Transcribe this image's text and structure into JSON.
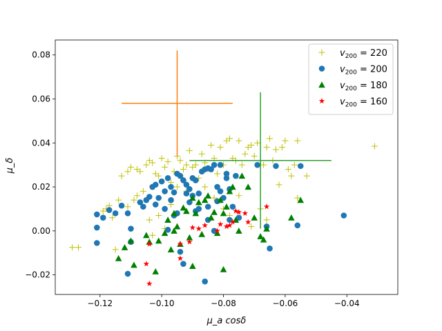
{
  "chart_data": {
    "type": "scatter",
    "xlabel": "μ_a cosδ",
    "ylabel": "μ_δ",
    "xlim": [
      -0.1345,
      -0.0235
    ],
    "ylim": [
      -0.0289,
      0.0868
    ],
    "xticks": [
      -0.12,
      -0.1,
      -0.08,
      -0.06,
      -0.04
    ],
    "xtick_labels": [
      "−0.12",
      "−0.10",
      "−0.08",
      "−0.06",
      "−0.04"
    ],
    "yticks": [
      -0.02,
      0.0,
      0.02,
      0.04,
      0.06,
      0.08
    ],
    "ytick_labels": [
      "−0.02",
      "0.00",
      "0.02",
      "0.04",
      "0.06",
      "0.08"
    ],
    "grid": false,
    "legend_position": "top-right",
    "series": [
      {
        "name": "v200 = 220",
        "legend_base": "v",
        "legend_sub": "200",
        "legend_value": " = 220",
        "marker": "plus",
        "color": "#bfbf00",
        "points": [
          [
            -0.129,
            -0.0075
          ],
          [
            -0.127,
            -0.0075
          ],
          [
            -0.118,
            0.01
          ],
          [
            -0.117,
            0.0115
          ],
          [
            -0.116,
            0.006
          ],
          [
            -0.115,
            -0.0085
          ],
          [
            -0.113,
            0.025
          ],
          [
            -0.111,
            0.027
          ],
          [
            -0.11,
            0.029
          ],
          [
            -0.109,
            0.014
          ],
          [
            -0.108,
            0.028
          ],
          [
            -0.107,
            0.027
          ],
          [
            -0.106,
            0.018
          ],
          [
            -0.105,
            0.03
          ],
          [
            -0.104,
            0.032
          ],
          [
            -0.103,
            0.031
          ],
          [
            -0.102,
            0.026
          ],
          [
            -0.101,
            0.025
          ],
          [
            -0.1,
            0.033
          ],
          [
            -0.099,
            0.029
          ],
          [
            -0.098,
            0.0315
          ],
          [
            -0.097,
            0.022
          ],
          [
            -0.096,
            0.027
          ],
          [
            -0.095,
            0.034
          ],
          [
            -0.094,
            0.032
          ],
          [
            -0.093,
            0.028
          ],
          [
            -0.092,
            0.03
          ],
          [
            -0.091,
            0.0365
          ],
          [
            -0.09,
            0.029
          ],
          [
            -0.089,
            0.03
          ],
          [
            -0.088,
            0.024
          ],
          [
            -0.087,
            0.035
          ],
          [
            -0.086,
            0.031
          ],
          [
            -0.085,
            0.028
          ],
          [
            -0.084,
            0.039
          ],
          [
            -0.083,
            0.033
          ],
          [
            -0.082,
            0.026
          ],
          [
            -0.081,
            0.038
          ],
          [
            -0.08,
            0.03
          ],
          [
            -0.079,
            0.041
          ],
          [
            -0.078,
            0.042
          ],
          [
            -0.077,
            0.033
          ],
          [
            -0.076,
            0.032
          ],
          [
            -0.075,
            0.041
          ],
          [
            -0.074,
            0.03
          ],
          [
            -0.073,
            0.035
          ],
          [
            -0.072,
            0.038
          ],
          [
            -0.071,
            0.039
          ],
          [
            -0.07,
            0.034
          ],
          [
            -0.069,
            0.04
          ],
          [
            -0.068,
            0.032
          ],
          [
            -0.067,
            0.03
          ],
          [
            -0.066,
            0.038
          ],
          [
            -0.065,
            0.042
          ],
          [
            -0.064,
            0.032
          ],
          [
            -0.063,
            0.037
          ],
          [
            -0.062,
            0.021
          ],
          [
            -0.061,
            0.038
          ],
          [
            -0.06,
            0.041
          ],
          [
            -0.059,
            0.028
          ],
          [
            -0.058,
            0.025
          ],
          [
            -0.057,
            0.03
          ],
          [
            -0.056,
            0.041
          ],
          [
            -0.056,
            0.015
          ],
          [
            -0.053,
            0.025
          ],
          [
            -0.031,
            0.0385
          ],
          [
            -0.104,
            0.005
          ],
          [
            -0.103,
            -0.002
          ],
          [
            -0.101,
            0.007
          ],
          [
            -0.099,
            0.001
          ],
          [
            -0.097,
            0.012
          ],
          [
            -0.095,
            0.02
          ],
          [
            -0.093,
            0.023
          ],
          [
            -0.111,
            0.011
          ],
          [
            -0.114,
            0.014
          ],
          [
            -0.119,
            0.009
          ],
          [
            -0.108,
            0.016
          ],
          [
            -0.092,
            0.018
          ],
          [
            -0.086,
            0.02
          ],
          [
            -0.083,
            0.015
          ],
          [
            -0.08,
            0.01
          ],
          [
            -0.078,
            0.007
          ],
          [
            -0.075,
            0.016
          ],
          [
            -0.068,
            0.01
          ],
          [
            -0.066,
            0.005
          ],
          [
            -0.071,
            0.002
          ],
          [
            -0.085,
            0.005
          ],
          [
            -0.088,
            0.012
          ]
        ]
      },
      {
        "name": "v200 = 200",
        "legend_base": "v",
        "legend_sub": "200",
        "legend_value": " = 200",
        "marker": "circle",
        "color": "#1f77b4",
        "points": [
          [
            -0.121,
            0.0075
          ],
          [
            -0.119,
            0.006
          ],
          [
            -0.121,
            0.0015
          ],
          [
            -0.121,
            -0.0055
          ],
          [
            -0.117,
            0.0095
          ],
          [
            -0.115,
            0.008
          ],
          [
            -0.113,
            0.0115
          ],
          [
            -0.111,
            0.008
          ],
          [
            -0.11,
            0.001
          ],
          [
            -0.11,
            -0.005
          ],
          [
            -0.111,
            -0.0195
          ],
          [
            -0.107,
            0.013
          ],
          [
            -0.106,
            0.011
          ],
          [
            -0.104,
            0.0155
          ],
          [
            -0.103,
            0.02
          ],
          [
            -0.102,
            0.021
          ],
          [
            -0.101,
            0.015
          ],
          [
            -0.1,
            0.0225
          ],
          [
            -0.099,
            0.018
          ],
          [
            -0.098,
            0.024
          ],
          [
            -0.097,
            0.02
          ],
          [
            -0.096,
            0.0175
          ],
          [
            -0.095,
            0.026
          ],
          [
            -0.094,
            0.025
          ],
          [
            -0.093,
            0.023
          ],
          [
            -0.092,
            0.021
          ],
          [
            -0.091,
            0.019
          ],
          [
            -0.09,
            0.016
          ],
          [
            -0.089,
            0.023
          ],
          [
            -0.088,
            0.017
          ],
          [
            -0.087,
            0.027
          ],
          [
            -0.086,
            0.028
          ],
          [
            -0.085,
            0.0285
          ],
          [
            -0.084,
            0.028
          ],
          [
            -0.083,
            0.03
          ],
          [
            -0.082,
            0.02
          ],
          [
            -0.081,
            0.018
          ],
          [
            -0.08,
            0.015
          ],
          [
            -0.079,
            0.024
          ],
          [
            -0.078,
            0.019
          ],
          [
            -0.077,
            0.011
          ],
          [
            -0.076,
            0.025
          ],
          [
            -0.075,
            0.006
          ],
          [
            -0.085,
            0.005
          ],
          [
            -0.083,
            0.0
          ],
          [
            -0.096,
            0.007
          ],
          [
            -0.098,
            0.0005
          ],
          [
            -0.093,
            -0.015
          ],
          [
            -0.094,
            -0.0095
          ],
          [
            -0.088,
            0.01
          ],
          [
            -0.086,
            -0.023
          ],
          [
            -0.069,
            0.03
          ],
          [
            -0.066,
            0.002
          ],
          [
            -0.065,
            -0.008
          ],
          [
            -0.055,
            0.0295
          ],
          [
            -0.056,
            0.0025
          ],
          [
            -0.041,
            0.007
          ],
          [
            -0.063,
            0.0295
          ],
          [
            -0.105,
            0.014
          ],
          [
            -0.102,
            0.012
          ],
          [
            -0.099,
            0.01
          ],
          [
            -0.097,
            0.014
          ],
          [
            -0.095,
            0.008
          ],
          [
            -0.091,
            0.013
          ],
          [
            -0.089,
            0.009
          ],
          [
            -0.085,
            0.011
          ],
          [
            -0.082,
            0.0135
          ],
          [
            -0.079,
            0.026
          ],
          [
            -0.078,
            0.005
          ],
          [
            -0.081,
            0.03
          ],
          [
            -0.09,
            0.024
          ],
          [
            -0.092,
            0.017
          ]
        ]
      },
      {
        "name": "v200 = 180",
        "legend_base": "v",
        "legend_sub": "200",
        "legend_value": " = 180",
        "marker": "triangle",
        "color": "#008000",
        "points": [
          [
            -0.114,
            -0.0125
          ],
          [
            -0.112,
            -0.0075
          ],
          [
            -0.11,
            -0.0045
          ],
          [
            -0.109,
            -0.0155
          ],
          [
            -0.105,
            -0.002
          ],
          [
            -0.104,
            -0.005
          ],
          [
            -0.102,
            -0.0185
          ],
          [
            -0.101,
            -0.0045
          ],
          [
            -0.099,
            -0.001
          ],
          [
            -0.098,
            0.005
          ],
          [
            -0.097,
            -0.0085
          ],
          [
            -0.096,
            0.008
          ],
          [
            -0.095,
            0.002
          ],
          [
            -0.094,
            -0.006
          ],
          [
            -0.093,
            0.0105
          ],
          [
            -0.092,
            0.009
          ],
          [
            -0.091,
            -0.003
          ],
          [
            -0.09,
            0.015
          ],
          [
            -0.089,
            0.008
          ],
          [
            -0.088,
            0.013
          ],
          [
            -0.087,
            -0.0015
          ],
          [
            -0.086,
            0.014
          ],
          [
            -0.085,
            0.016
          ],
          [
            -0.084,
            0.006
          ],
          [
            -0.083,
            0.0085
          ],
          [
            -0.082,
            -0.001
          ],
          [
            -0.081,
            0.014
          ],
          [
            -0.08,
            0.008
          ],
          [
            -0.079,
            0.011
          ],
          [
            -0.078,
            0.018
          ],
          [
            -0.077,
            0.02
          ],
          [
            -0.076,
            0.005
          ],
          [
            -0.075,
            0.0
          ],
          [
            -0.074,
            0.025
          ],
          [
            -0.072,
            0.02
          ],
          [
            -0.07,
            0.006
          ],
          [
            -0.068,
            -0.0025
          ],
          [
            -0.067,
            -0.004
          ],
          [
            -0.066,
            0.001
          ],
          [
            -0.058,
            0.006
          ],
          [
            -0.055,
            0.014
          ],
          [
            -0.08,
            -0.0175
          ],
          [
            -0.09,
            -0.016
          ],
          [
            -0.096,
            0.0
          ]
        ]
      },
      {
        "name": "v200 = 160",
        "legend_base": "v",
        "legend_sub": "200",
        "legend_value": " = 160",
        "marker": "star",
        "color": "#ff0000",
        "points": [
          [
            -0.104,
            -0.024
          ],
          [
            -0.105,
            -0.015
          ],
          [
            -0.104,
            -0.006
          ],
          [
            -0.094,
            -0.006
          ],
          [
            -0.094,
            -0.0125
          ],
          [
            -0.091,
            -0.005
          ],
          [
            -0.09,
            0.0015
          ],
          [
            -0.088,
            0.001
          ],
          [
            -0.086,
            0.0025
          ],
          [
            -0.081,
            0.003
          ],
          [
            -0.078,
            0.0025
          ],
          [
            -0.077,
            0.004
          ],
          [
            -0.076,
            0.009
          ],
          [
            -0.075,
            0.0085
          ],
          [
            -0.073,
            0.008
          ],
          [
            -0.072,
            0.004
          ],
          [
            -0.066,
            0.011
          ],
          [
            -0.082,
            0.0
          ],
          [
            -0.079,
            0.002
          ]
        ]
      },
      {
        "name": "orange error cross",
        "marker": "errorbar",
        "color": "#ff7f0e",
        "center": [
          -0.095,
          0.058
        ],
        "xerr": 0.018,
        "yerr": 0.024
      },
      {
        "name": "green error cross",
        "marker": "errorbar",
        "color": "#2ca02c",
        "center": [
          -0.068,
          0.032
        ],
        "xerr": 0.023,
        "yerr": 0.031
      }
    ]
  }
}
